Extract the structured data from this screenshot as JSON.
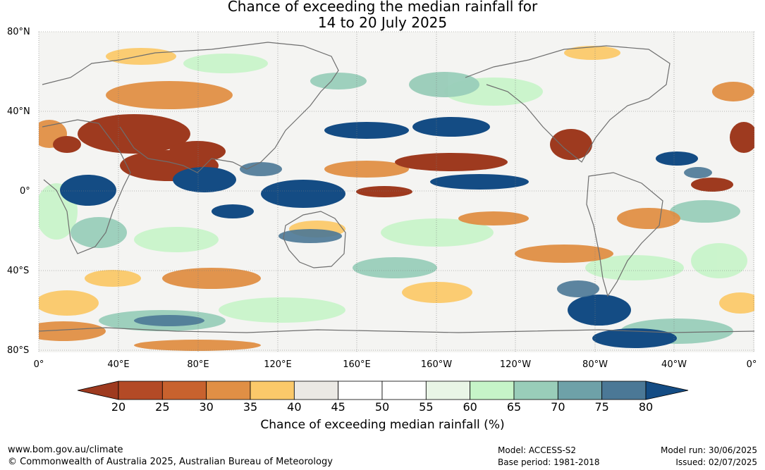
{
  "title": {
    "line1": "Chance of exceeding the median rainfall for",
    "line2": "14 to 20 July 2025"
  },
  "latitude_labels": [
    "80°N",
    "40°N",
    "0°",
    "40°S",
    "80°S"
  ],
  "longitude_labels": [
    "0°",
    "40°E",
    "80°E",
    "120°E",
    "160°E",
    "160°W",
    "120°W",
    "80°W",
    "40°W",
    "0°"
  ],
  "colorbar": {
    "ticks": [
      "20",
      "25",
      "30",
      "35",
      "40",
      "45",
      "50",
      "55",
      "60",
      "65",
      "70",
      "75",
      "80"
    ],
    "colors": [
      "#9e3a1f",
      "#b34a26",
      "#c8622e",
      "#e08f45",
      "#fbc96a",
      "#ebe9e4",
      "#ffffff",
      "#ffffff",
      "#e9f5e6",
      "#c6f4c8",
      "#99cdb9",
      "#6ea1a8",
      "#4b7896",
      "#144c84"
    ],
    "label": "Chance of exceeding median rainfall (%)"
  },
  "footer": {
    "url": "www.bom.gov.au/climate",
    "copyright": "© Commonwealth of Australia 2025, Australian Bureau of Meteorology",
    "model": "Model: ACCESS-S2",
    "base_period": "Base period: 1981-2018",
    "model_run": "Model run: 30/06/2025",
    "issued": "Issued: 02/07/2025"
  }
}
